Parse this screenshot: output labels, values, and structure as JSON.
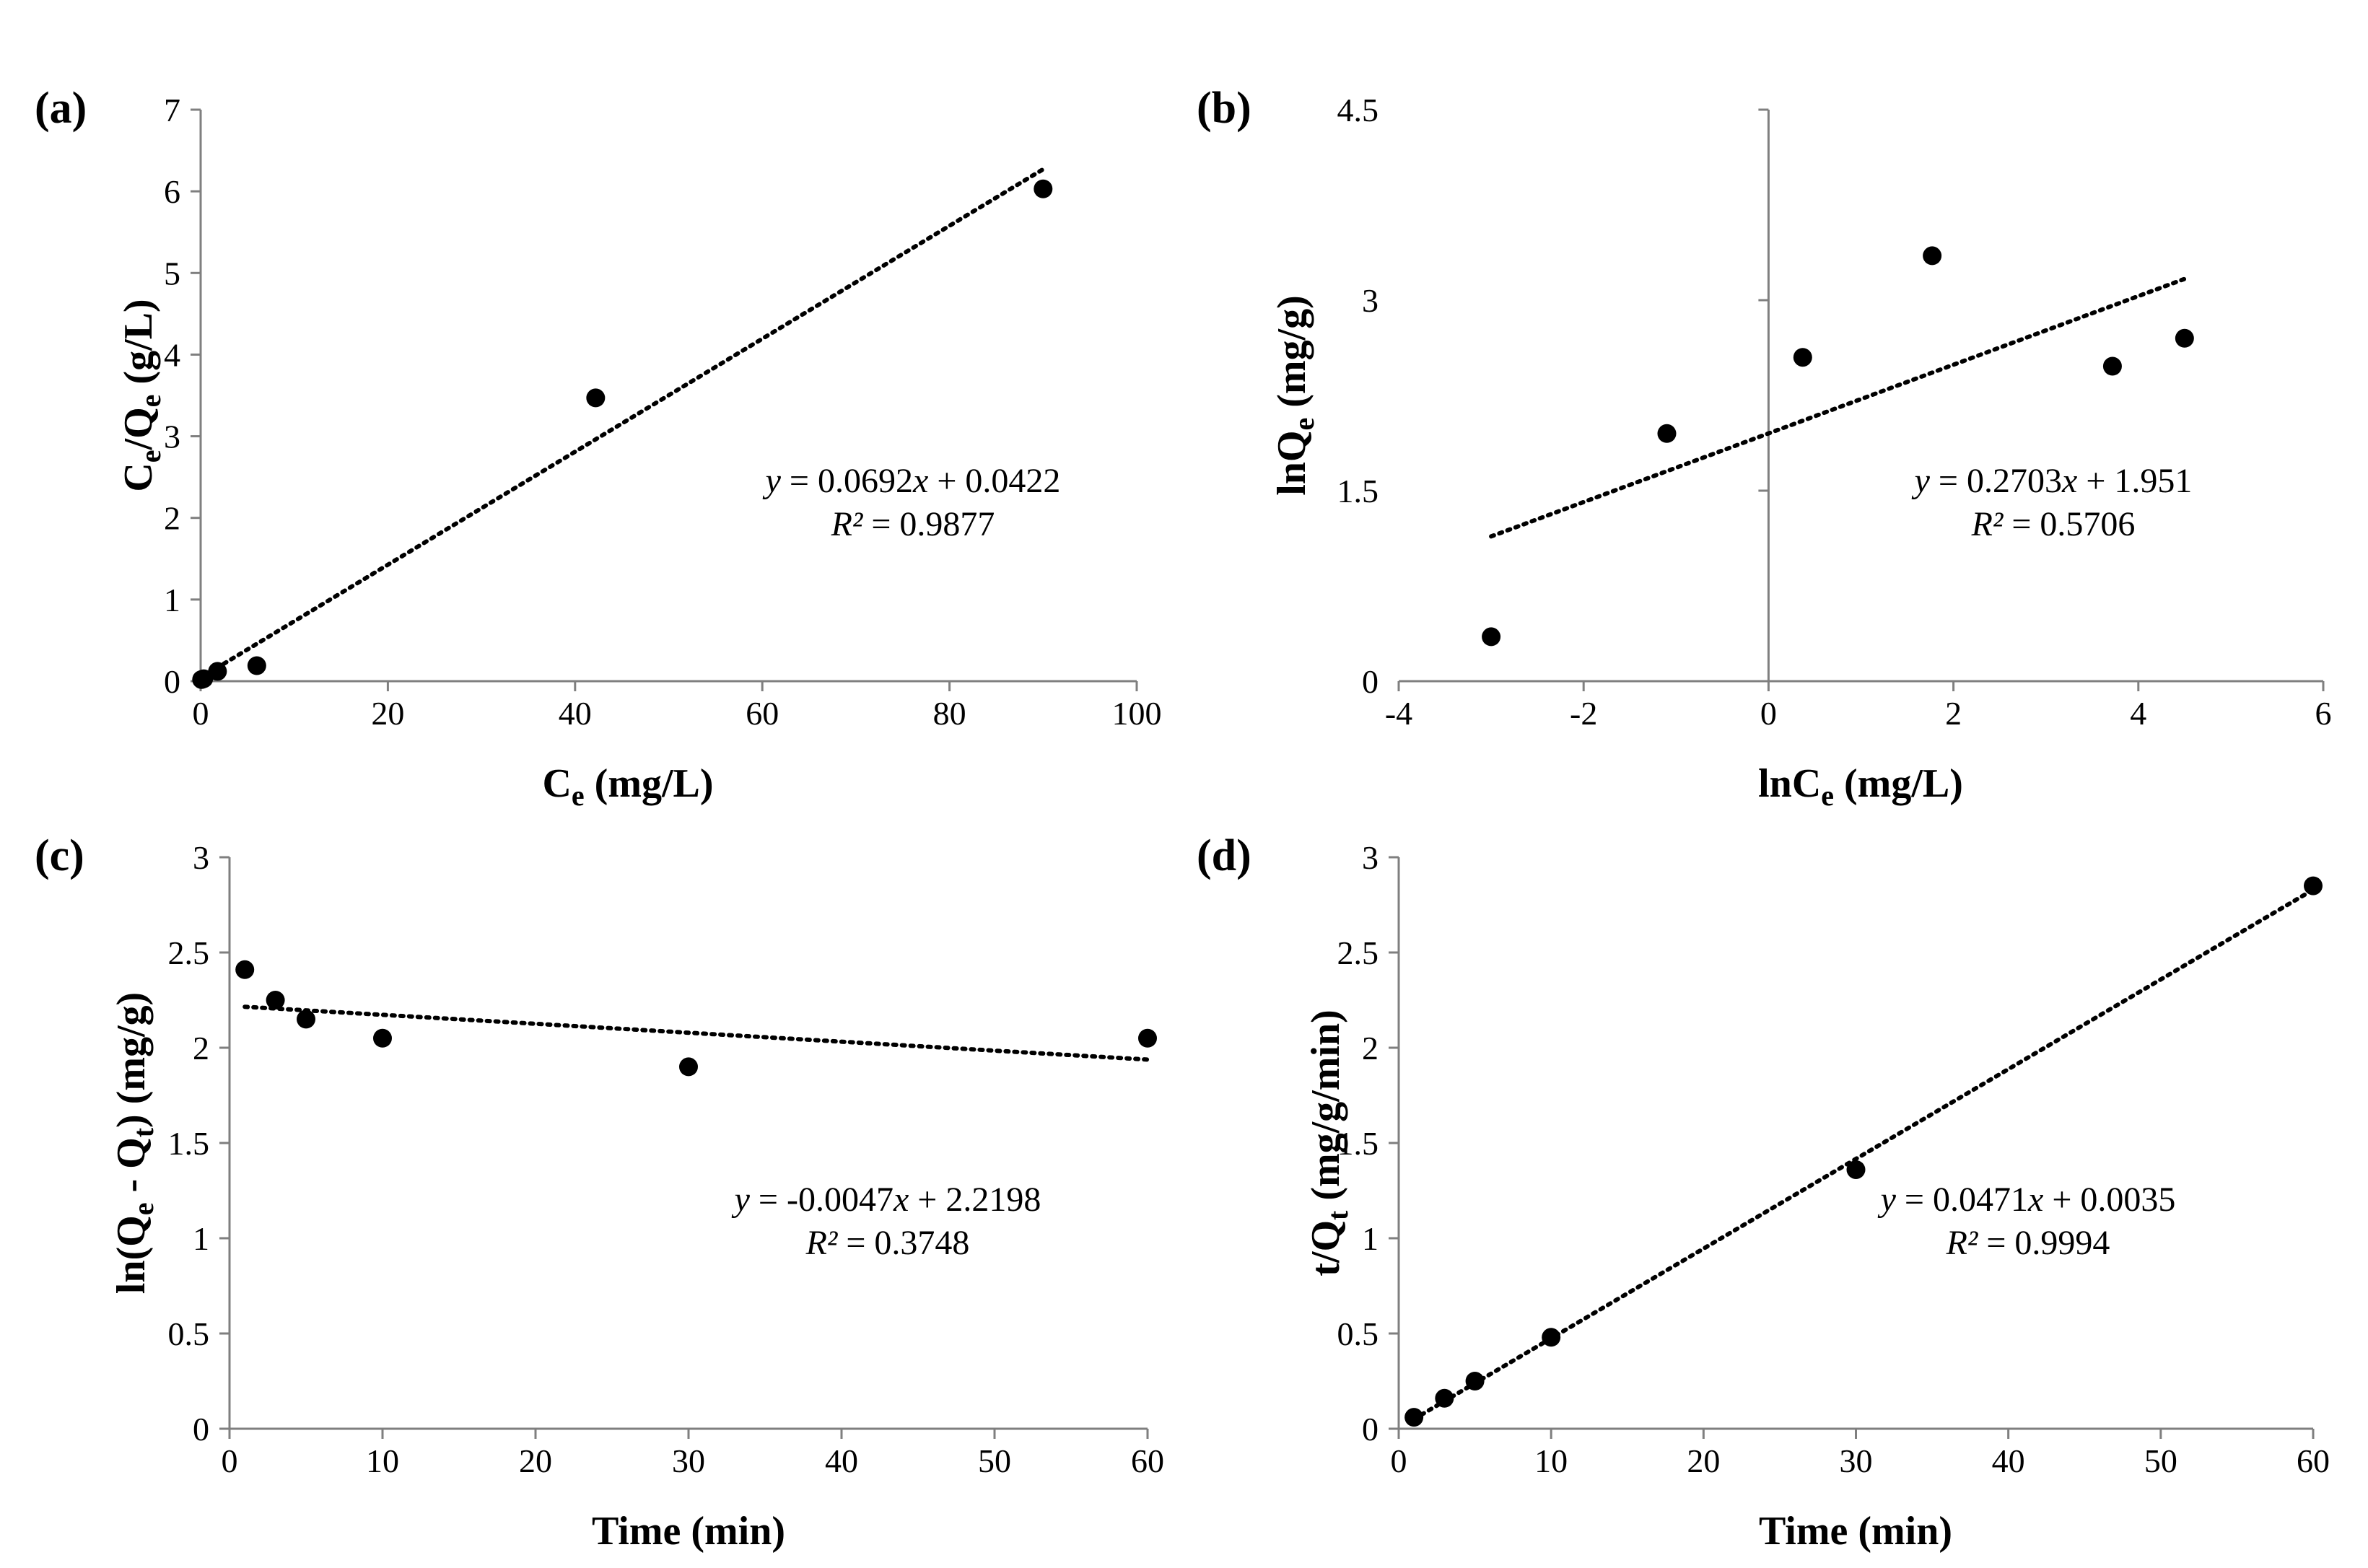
{
  "chart_data": [
    {
      "panel": "(a)",
      "type": "scatter",
      "xlabel": {
        "main": "C",
        "sub": "e",
        "rest": " (mg/L)"
      },
      "ylabel": {
        "parts": [
          [
            "C",
            ""
          ],
          [
            "e",
            "sub"
          ],
          [
            "/Q",
            ""
          ],
          [
            "e",
            "sub"
          ],
          [
            " (g/L)",
            ""
          ]
        ]
      },
      "xlim": [
        0,
        100
      ],
      "ylim": [
        0,
        7
      ],
      "xticks": [
        0,
        20,
        40,
        60,
        80,
        100
      ],
      "yticks": [
        0,
        1,
        2,
        3,
        4,
        5,
        6,
        7
      ],
      "points": [
        [
          0.1,
          0.02
        ],
        [
          0.33,
          0.03
        ],
        [
          1.8,
          0.12
        ],
        [
          6,
          0.19
        ],
        [
          42.2,
          3.47
        ],
        [
          90,
          6.03
        ]
      ],
      "trendline": {
        "slope": 0.0692,
        "intercept": 0.0422,
        "x_start": 0.1,
        "x_end": 90
      },
      "equation": {
        "lhs": "y",
        "mid": " = 0.0692",
        "var": "x",
        "rest": " + 0.0422"
      },
      "r2": {
        "lhs": "R²",
        "rest": " = 0.9877"
      }
    },
    {
      "panel": "(b)",
      "type": "scatter",
      "xlabel": {
        "main": "lnC",
        "sub": "e",
        "rest": " (mg/L)"
      },
      "ylabel": {
        "parts": [
          [
            "lnQ",
            ""
          ],
          [
            "e",
            "sub"
          ],
          [
            " (mg/g)",
            ""
          ]
        ]
      },
      "xlim": [
        -4,
        6
      ],
      "ylim": [
        0,
        4.5
      ],
      "xticks": [
        -4,
        -2,
        0,
        2,
        4,
        6
      ],
      "yticks": [
        0,
        1.5,
        3,
        4.5
      ],
      "points": [
        [
          -3,
          0.35
        ],
        [
          -1.1,
          1.95
        ],
        [
          0.37,
          2.55
        ],
        [
          1.77,
          3.35
        ],
        [
          3.72,
          2.48
        ],
        [
          4.5,
          2.7
        ]
      ],
      "trendline": {
        "slope": 0.2703,
        "intercept": 1.951,
        "x_start": -3,
        "x_end": 4.5
      },
      "equation": {
        "lhs": "y",
        "mid": " = 0.2703",
        "var": "x",
        "rest": " + 1.951"
      },
      "r2": {
        "lhs": "R²",
        "rest": " = 0.5706"
      }
    },
    {
      "panel": "(c)",
      "type": "scatter",
      "xlabel": {
        "main": "Time (min)",
        "sub": "",
        "rest": ""
      },
      "ylabel": {
        "parts": [
          [
            "ln(Q",
            ""
          ],
          [
            "e",
            "sub"
          ],
          [
            " - Q",
            ""
          ],
          [
            "t",
            "sub"
          ],
          [
            ") (mg/g)",
            ""
          ]
        ]
      },
      "xlim": [
        0,
        60
      ],
      "ylim": [
        0,
        3
      ],
      "xticks": [
        0,
        10,
        20,
        30,
        40,
        50,
        60
      ],
      "yticks": [
        0,
        0.5,
        1,
        1.5,
        2,
        2.5,
        3
      ],
      "points": [
        [
          1,
          2.41
        ],
        [
          3,
          2.25
        ],
        [
          5,
          2.15
        ],
        [
          10,
          2.05
        ],
        [
          30,
          1.9
        ],
        [
          60,
          2.05
        ]
      ],
      "trendline": {
        "slope": -0.0047,
        "intercept": 2.2198,
        "x_start": 1,
        "x_end": 60
      },
      "equation": {
        "lhs": "y",
        "mid": " = -0.0047",
        "var": "x",
        "rest": " + 2.2198"
      },
      "r2": {
        "lhs": "R²",
        "rest": " = 0.3748"
      }
    },
    {
      "panel": "(d)",
      "type": "scatter",
      "xlabel": {
        "main": "Time (min)",
        "sub": "",
        "rest": ""
      },
      "ylabel": {
        "parts": [
          [
            "t/Q",
            ""
          ],
          [
            "t",
            "sub"
          ],
          [
            " (mg/g/min)",
            ""
          ]
        ]
      },
      "xlim": [
        0,
        60
      ],
      "ylim": [
        0,
        3
      ],
      "xticks": [
        0,
        10,
        20,
        30,
        40,
        50,
        60
      ],
      "yticks": [
        0,
        0.5,
        1,
        1.5,
        2,
        2.5,
        3
      ],
      "points": [
        [
          1,
          0.06
        ],
        [
          3,
          0.16
        ],
        [
          5,
          0.25
        ],
        [
          10,
          0.48
        ],
        [
          30,
          1.36
        ],
        [
          60,
          2.85
        ]
      ],
      "trendline": {
        "slope": 0.0471,
        "intercept": 0.0035,
        "x_start": 1,
        "x_end": 60
      },
      "equation": {
        "lhs": "y",
        "mid": " = 0.0471",
        "var": "x",
        "rest": " + 0.0035"
      },
      "r2": {
        "lhs": "R²",
        "rest": " = 0.9994"
      }
    }
  ]
}
